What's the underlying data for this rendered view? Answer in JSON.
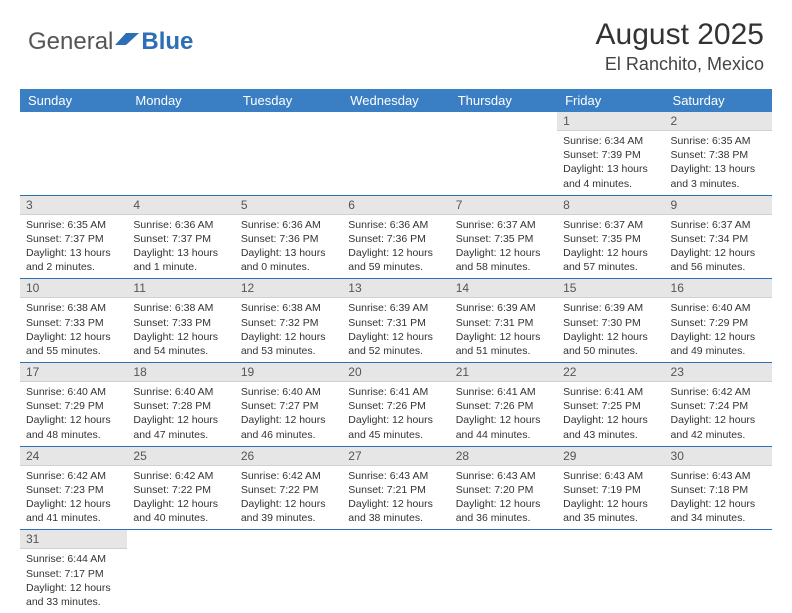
{
  "logo": {
    "text1": "General",
    "text2": "Blue"
  },
  "header": {
    "month": "August 2025",
    "location": "El Ranchito, Mexico"
  },
  "colors": {
    "header_bg": "#3a7fc4",
    "header_fg": "#ffffff",
    "daynum_bg": "#e6e6e6",
    "cell_border": "#2d6fb5"
  },
  "weekdays": [
    "Sunday",
    "Monday",
    "Tuesday",
    "Wednesday",
    "Thursday",
    "Friday",
    "Saturday"
  ],
  "weeks": [
    [
      null,
      null,
      null,
      null,
      null,
      {
        "n": "1",
        "sr": "Sunrise: 6:34 AM",
        "ss": "Sunset: 7:39 PM",
        "dl": "Daylight: 13 hours and 4 minutes."
      },
      {
        "n": "2",
        "sr": "Sunrise: 6:35 AM",
        "ss": "Sunset: 7:38 PM",
        "dl": "Daylight: 13 hours and 3 minutes."
      }
    ],
    [
      {
        "n": "3",
        "sr": "Sunrise: 6:35 AM",
        "ss": "Sunset: 7:37 PM",
        "dl": "Daylight: 13 hours and 2 minutes."
      },
      {
        "n": "4",
        "sr": "Sunrise: 6:36 AM",
        "ss": "Sunset: 7:37 PM",
        "dl": "Daylight: 13 hours and 1 minute."
      },
      {
        "n": "5",
        "sr": "Sunrise: 6:36 AM",
        "ss": "Sunset: 7:36 PM",
        "dl": "Daylight: 13 hours and 0 minutes."
      },
      {
        "n": "6",
        "sr": "Sunrise: 6:36 AM",
        "ss": "Sunset: 7:36 PM",
        "dl": "Daylight: 12 hours and 59 minutes."
      },
      {
        "n": "7",
        "sr": "Sunrise: 6:37 AM",
        "ss": "Sunset: 7:35 PM",
        "dl": "Daylight: 12 hours and 58 minutes."
      },
      {
        "n": "8",
        "sr": "Sunrise: 6:37 AM",
        "ss": "Sunset: 7:35 PM",
        "dl": "Daylight: 12 hours and 57 minutes."
      },
      {
        "n": "9",
        "sr": "Sunrise: 6:37 AM",
        "ss": "Sunset: 7:34 PM",
        "dl": "Daylight: 12 hours and 56 minutes."
      }
    ],
    [
      {
        "n": "10",
        "sr": "Sunrise: 6:38 AM",
        "ss": "Sunset: 7:33 PM",
        "dl": "Daylight: 12 hours and 55 minutes."
      },
      {
        "n": "11",
        "sr": "Sunrise: 6:38 AM",
        "ss": "Sunset: 7:33 PM",
        "dl": "Daylight: 12 hours and 54 minutes."
      },
      {
        "n": "12",
        "sr": "Sunrise: 6:38 AM",
        "ss": "Sunset: 7:32 PM",
        "dl": "Daylight: 12 hours and 53 minutes."
      },
      {
        "n": "13",
        "sr": "Sunrise: 6:39 AM",
        "ss": "Sunset: 7:31 PM",
        "dl": "Daylight: 12 hours and 52 minutes."
      },
      {
        "n": "14",
        "sr": "Sunrise: 6:39 AM",
        "ss": "Sunset: 7:31 PM",
        "dl": "Daylight: 12 hours and 51 minutes."
      },
      {
        "n": "15",
        "sr": "Sunrise: 6:39 AM",
        "ss": "Sunset: 7:30 PM",
        "dl": "Daylight: 12 hours and 50 minutes."
      },
      {
        "n": "16",
        "sr": "Sunrise: 6:40 AM",
        "ss": "Sunset: 7:29 PM",
        "dl": "Daylight: 12 hours and 49 minutes."
      }
    ],
    [
      {
        "n": "17",
        "sr": "Sunrise: 6:40 AM",
        "ss": "Sunset: 7:29 PM",
        "dl": "Daylight: 12 hours and 48 minutes."
      },
      {
        "n": "18",
        "sr": "Sunrise: 6:40 AM",
        "ss": "Sunset: 7:28 PM",
        "dl": "Daylight: 12 hours and 47 minutes."
      },
      {
        "n": "19",
        "sr": "Sunrise: 6:40 AM",
        "ss": "Sunset: 7:27 PM",
        "dl": "Daylight: 12 hours and 46 minutes."
      },
      {
        "n": "20",
        "sr": "Sunrise: 6:41 AM",
        "ss": "Sunset: 7:26 PM",
        "dl": "Daylight: 12 hours and 45 minutes."
      },
      {
        "n": "21",
        "sr": "Sunrise: 6:41 AM",
        "ss": "Sunset: 7:26 PM",
        "dl": "Daylight: 12 hours and 44 minutes."
      },
      {
        "n": "22",
        "sr": "Sunrise: 6:41 AM",
        "ss": "Sunset: 7:25 PM",
        "dl": "Daylight: 12 hours and 43 minutes."
      },
      {
        "n": "23",
        "sr": "Sunrise: 6:42 AM",
        "ss": "Sunset: 7:24 PM",
        "dl": "Daylight: 12 hours and 42 minutes."
      }
    ],
    [
      {
        "n": "24",
        "sr": "Sunrise: 6:42 AM",
        "ss": "Sunset: 7:23 PM",
        "dl": "Daylight: 12 hours and 41 minutes."
      },
      {
        "n": "25",
        "sr": "Sunrise: 6:42 AM",
        "ss": "Sunset: 7:22 PM",
        "dl": "Daylight: 12 hours and 40 minutes."
      },
      {
        "n": "26",
        "sr": "Sunrise: 6:42 AM",
        "ss": "Sunset: 7:22 PM",
        "dl": "Daylight: 12 hours and 39 minutes."
      },
      {
        "n": "27",
        "sr": "Sunrise: 6:43 AM",
        "ss": "Sunset: 7:21 PM",
        "dl": "Daylight: 12 hours and 38 minutes."
      },
      {
        "n": "28",
        "sr": "Sunrise: 6:43 AM",
        "ss": "Sunset: 7:20 PM",
        "dl": "Daylight: 12 hours and 36 minutes."
      },
      {
        "n": "29",
        "sr": "Sunrise: 6:43 AM",
        "ss": "Sunset: 7:19 PM",
        "dl": "Daylight: 12 hours and 35 minutes."
      },
      {
        "n": "30",
        "sr": "Sunrise: 6:43 AM",
        "ss": "Sunset: 7:18 PM",
        "dl": "Daylight: 12 hours and 34 minutes."
      }
    ],
    [
      {
        "n": "31",
        "sr": "Sunrise: 6:44 AM",
        "ss": "Sunset: 7:17 PM",
        "dl": "Daylight: 12 hours and 33 minutes."
      },
      null,
      null,
      null,
      null,
      null,
      null
    ]
  ]
}
